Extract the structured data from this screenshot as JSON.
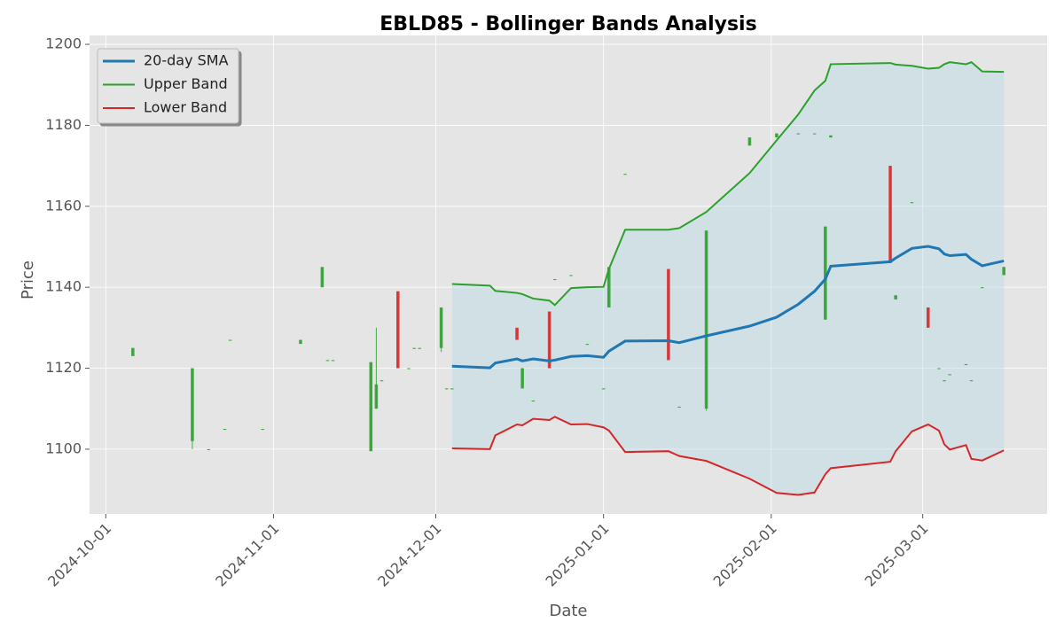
{
  "chart_data": {
    "type": "candlestick",
    "title": "EBLD85 - Bollinger Bands Analysis",
    "xlabel": "Date",
    "ylabel": "Price",
    "xlim": [
      "2024-09-28",
      "2025-03-24"
    ],
    "xticks": [
      "2024-10-01",
      "2024-11-01",
      "2024-12-01",
      "2025-01-01",
      "2025-02-01",
      "2025-03-01"
    ],
    "ylim": [
      1084,
      1202.2
    ],
    "yticks": [
      1100,
      1120,
      1140,
      1160,
      1180,
      1200
    ],
    "grid": true,
    "legend": "upper left",
    "up_color": "#2ca02c",
    "down_color": "#d62728",
    "band_fill": "#add8e6",
    "candles": {
      "x": [
        "2024-10-06",
        "2024-10-17",
        "2024-10-20",
        "2024-10-23",
        "2024-10-24",
        "2024-10-30",
        "2024-11-06",
        "2024-11-10",
        "2024-11-11",
        "2024-11-12",
        "2024-11-19",
        "2024-11-20",
        "2024-11-21",
        "2024-11-24",
        "2024-11-26",
        "2024-11-27",
        "2024-11-28",
        "2024-12-02",
        "2024-12-03",
        "2024-12-04",
        "2024-12-16",
        "2024-12-17",
        "2024-12-19",
        "2024-12-22",
        "2024-12-23",
        "2024-12-26",
        "2024-12-29",
        "2025-01-01",
        "2025-01-02",
        "2025-01-05",
        "2025-01-13",
        "2025-01-15",
        "2025-01-20",
        "2025-01-28",
        "2025-02-02",
        "2025-02-06",
        "2025-02-09",
        "2025-02-11",
        "2025-02-12",
        "2025-02-23",
        "2025-02-24",
        "2025-02-27",
        "2025-03-02",
        "2025-03-04",
        "2025-03-05",
        "2025-03-06",
        "2025-03-09",
        "2025-03-10",
        "2025-03-12",
        "2025-03-16"
      ],
      "open": [
        1123,
        1102,
        1100,
        1105,
        1127,
        1105,
        1126,
        1140,
        1122,
        1122,
        1099.5,
        1110,
        1117,
        1139,
        1120,
        1125,
        1125,
        1125,
        1115,
        1115,
        1130,
        1115,
        1112,
        1134,
        1142,
        1143,
        1126,
        1115,
        1135,
        1168,
        1144.5,
        1110.5,
        1110,
        1175,
        1177,
        1178,
        1178,
        1132,
        1177,
        1170,
        1137,
        1161,
        1135,
        1120,
        1117,
        1118.5,
        1121,
        1117,
        1140,
        1143
      ],
      "high": [
        1125,
        1120,
        1100,
        1105,
        1127,
        1105,
        1127,
        1145,
        1122,
        1122,
        1121.5,
        1130,
        1117,
        1139,
        1120,
        1125,
        1125,
        1135,
        1115,
        1115,
        1130,
        1120,
        1112,
        1134,
        1142,
        1143,
        1126,
        1115,
        1145,
        1168,
        1144.5,
        1110.5,
        1154,
        1177,
        1178,
        1178,
        1178,
        1155,
        1177.5,
        1170,
        1138,
        1161,
        1135,
        1120,
        1117,
        1118.5,
        1121,
        1117,
        1140,
        1145
      ],
      "low": [
        1123,
        1100,
        1100,
        1105,
        1127,
        1105,
        1126,
        1140,
        1122,
        1122,
        1099.5,
        1110,
        1117,
        1120,
        1120,
        1125,
        1125,
        1124,
        1115,
        1115,
        1127,
        1115,
        1112,
        1120,
        1142,
        1143,
        1126,
        1115,
        1135,
        1168,
        1122,
        1110.5,
        1109.5,
        1175,
        1177,
        1178,
        1178,
        1132,
        1177,
        1146,
        1137,
        1161,
        1130,
        1120,
        1117,
        1118.5,
        1121,
        1117,
        1140,
        1143
      ],
      "close": [
        1125,
        1120,
        1100,
        1105,
        1127,
        1105,
        1127,
        1145,
        1122,
        1122,
        1121.5,
        1116,
        1117,
        1120,
        1120,
        1125,
        1125,
        1135,
        1115,
        1115,
        1127,
        1120,
        1112,
        1120,
        1142,
        1143,
        1126,
        1115,
        1145,
        1168,
        1122,
        1110.5,
        1154,
        1177,
        1178,
        1178,
        1178,
        1155,
        1177.5,
        1146,
        1138,
        1161,
        1130,
        1120,
        1117,
        1118.5,
        1121,
        1117,
        1140,
        1145
      ]
    },
    "band_x": [
      "2024-12-04",
      "2024-12-11",
      "2024-12-12",
      "2024-12-16",
      "2024-12-17",
      "2024-12-19",
      "2024-12-22",
      "2024-12-23",
      "2024-12-26",
      "2024-12-29",
      "2025-01-01",
      "2025-01-02",
      "2025-01-05",
      "2025-01-13",
      "2025-01-15",
      "2025-01-20",
      "2025-01-28",
      "2025-02-02",
      "2025-02-06",
      "2025-02-09",
      "2025-02-11",
      "2025-02-12",
      "2025-02-23",
      "2025-02-24",
      "2025-02-27",
      "2025-03-02",
      "2025-03-04",
      "2025-03-05",
      "2025-03-06",
      "2025-03-09",
      "2025-03-10",
      "2025-03-12",
      "2025-03-16"
    ],
    "series": [
      {
        "name": "20-day SMA",
        "color": "#1f77b4",
        "values": [
          1120.5,
          1120.1,
          1121.3,
          1122.3,
          1121.8,
          1122.3,
          1121.8,
          1122,
          1122.9,
          1123.1,
          1122.7,
          1124.2,
          1126.7,
          1126.8,
          1126.3,
          1128,
          1130.4,
          1132.6,
          1135.8,
          1139,
          1142,
          1145.2,
          1146.3,
          1147.2,
          1149.6,
          1150.1,
          1149.5,
          1148.2,
          1147.8,
          1148.1,
          1146.9,
          1145.3,
          1146.5
        ]
      },
      {
        "name": "Upper Band",
        "color": "#2ca02c",
        "values": [
          1140.8,
          1140.4,
          1139.1,
          1138.6,
          1138.3,
          1137.2,
          1136.7,
          1135.6,
          1139.8,
          1140,
          1140.1,
          1144.5,
          1154.2,
          1154.2,
          1154.6,
          1158.6,
          1168.2,
          1176.3,
          1182.7,
          1188.6,
          1191,
          1195.1,
          1195.4,
          1195,
          1194.7,
          1194,
          1194.2,
          1195.1,
          1195.6,
          1195.1,
          1195.6,
          1193.3,
          1193.2
        ]
      },
      {
        "name": "Lower Band",
        "color": "#d62728",
        "values": [
          1100.2,
          1100,
          1103.4,
          1106.1,
          1105.9,
          1107.5,
          1107.2,
          1108,
          1106.1,
          1106.2,
          1105.4,
          1104.6,
          1099.3,
          1099.5,
          1098.3,
          1097.1,
          1092.7,
          1089.2,
          1088.7,
          1089.3,
          1093.8,
          1095.3,
          1096.9,
          1099.5,
          1104.4,
          1106.1,
          1104.6,
          1101.2,
          1099.9,
          1101,
          1097.6,
          1097.2,
          1099.7
        ]
      }
    ]
  }
}
